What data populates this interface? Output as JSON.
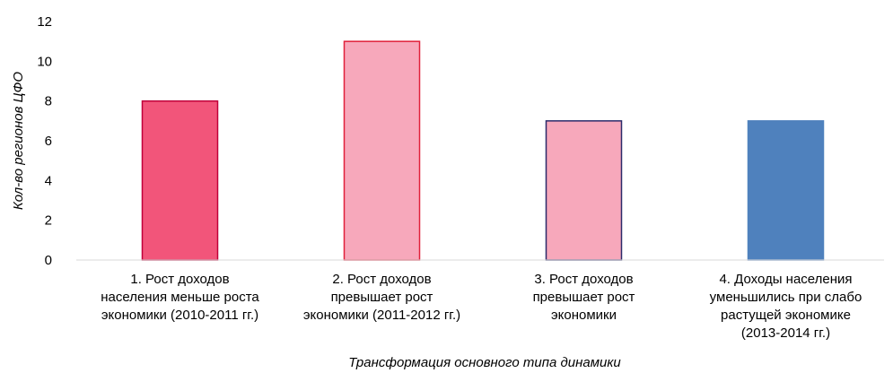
{
  "chart_data": {
    "type": "bar",
    "categories": [
      [
        "1. Рост доходов",
        "населения меньше роста",
        "экономики (2010-2011 гг.)"
      ],
      [
        "2. Рост доходов",
        "превышает рост",
        "экономики (2011-2012 гг.)"
      ],
      [
        "3. Рост доходов",
        "превышает рост",
        "экономики"
      ],
      [
        "4. Доходы населения",
        "уменьшились при слабо",
        "растущей экономике",
        "(2013-2014 гг.)"
      ]
    ],
    "values": [
      8,
      11,
      7,
      7
    ],
    "bar_colors": [
      "#f2557a",
      "#f7a8bb",
      "#f7a8bb",
      "#4f81bd"
    ],
    "bar_borders": [
      "#c0003a",
      "#e0203a",
      "#2b2b6b",
      "#4f81bd"
    ],
    "title": "",
    "xlabel": "Трансформация основного типа динамики",
    "ylabel": "Кол-во регионов ЦФО",
    "ylim": [
      0,
      12
    ],
    "yticks": [
      0,
      2,
      4,
      6,
      8,
      10,
      12
    ],
    "grid": false,
    "legend": "none"
  }
}
